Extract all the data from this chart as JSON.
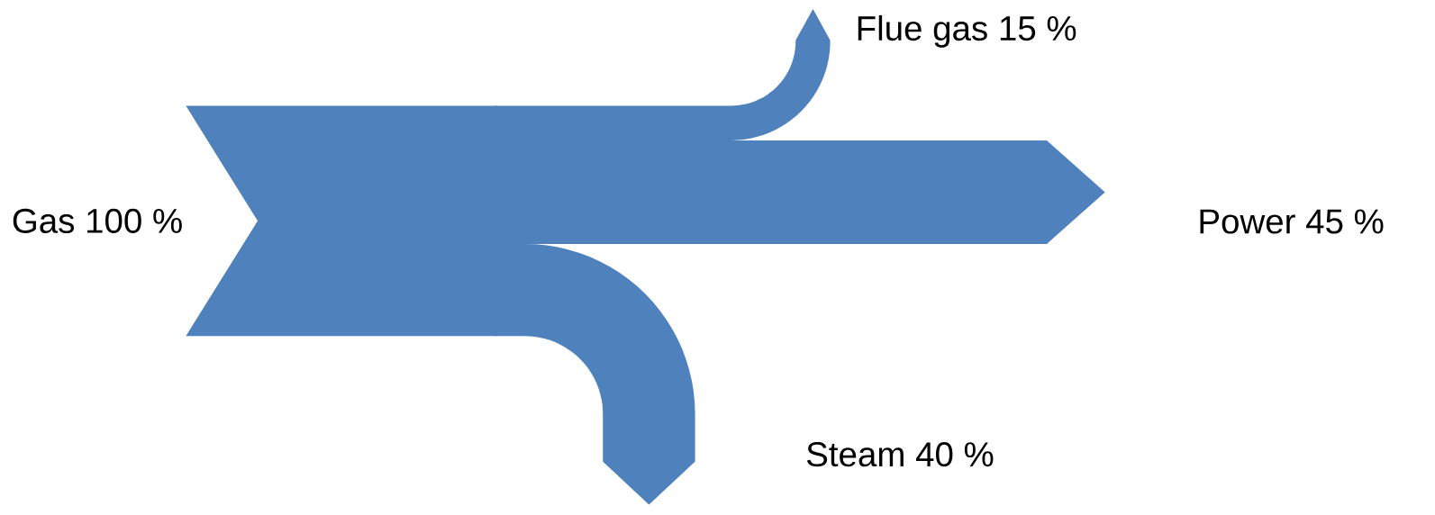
{
  "chart_data": {
    "type": "other",
    "categories": [
      "Gas",
      "Flue gas",
      "Power",
      "Steam"
    ],
    "values": [
      100,
      15,
      45,
      40
    ],
    "value_labels": [
      "100 %",
      "15 %",
      "45 %",
      "40 %"
    ],
    "color": "#4f81bd"
  }
}
